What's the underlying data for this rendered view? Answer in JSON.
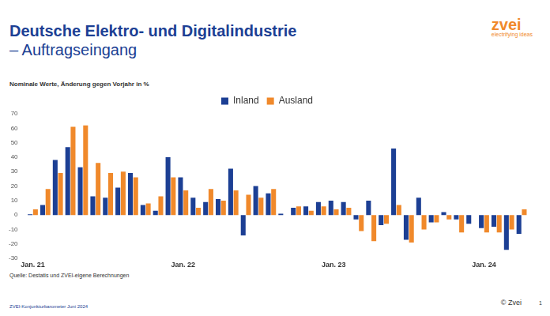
{
  "chart_data": {
    "type": "bar",
    "title": "Deutsche Elektro- und Digitalindustrie",
    "subtitle": "– Auftragseingang",
    "y_label": "Nominale Werte, Änderung gegen Vorjahr in %",
    "source": "Quelle: Destatis und ZVEI-eigene Berechnungen",
    "footer": "ZVEI-Konjunkturbarometer Juni 2024",
    "copyright": "© Zvei",
    "page_number": "1",
    "logo": {
      "text": "zvei",
      "tagline": "electrifying ideas"
    },
    "categories": [
      "Jan. 21",
      null,
      null,
      null,
      null,
      null,
      null,
      null,
      null,
      null,
      null,
      null,
      "Jan. 22",
      null,
      null,
      null,
      null,
      null,
      null,
      null,
      null,
      null,
      null,
      null,
      "Jan. 23",
      null,
      null,
      null,
      null,
      null,
      null,
      null,
      null,
      null,
      null,
      null,
      "Jan. 24",
      null,
      null,
      null
    ],
    "series": [
      {
        "name": "Inland",
        "color": "#1c3f94",
        "values": [
          0.5,
          7,
          38,
          47,
          33,
          13,
          12,
          19,
          29,
          7,
          3,
          40,
          26,
          12,
          9,
          11,
          32,
          -14,
          20,
          15,
          1,
          5,
          6,
          9,
          10,
          9,
          -3,
          10,
          -7,
          46,
          -17,
          12,
          -5,
          2,
          -3,
          -6,
          -9,
          -8,
          -24,
          -13
        ]
      },
      {
        "name": "Ausland",
        "color": "#f0892b",
        "values": [
          4,
          18,
          29,
          61,
          62,
          36,
          29,
          30,
          26,
          8,
          13,
          26,
          17,
          5,
          18,
          10,
          17,
          14,
          12,
          18,
          0,
          6,
          3,
          6,
          4,
          5,
          -11,
          -18,
          -6,
          7,
          -19,
          -10,
          -5,
          -3,
          -12,
          0,
          -12,
          -12,
          -10,
          4
        ]
      }
    ],
    "ylim": [
      -30,
      70
    ],
    "yticks": [
      -30,
      -20,
      -10,
      0,
      10,
      20,
      30,
      40,
      50,
      60,
      70
    ],
    "grid": false,
    "legend": "top"
  }
}
